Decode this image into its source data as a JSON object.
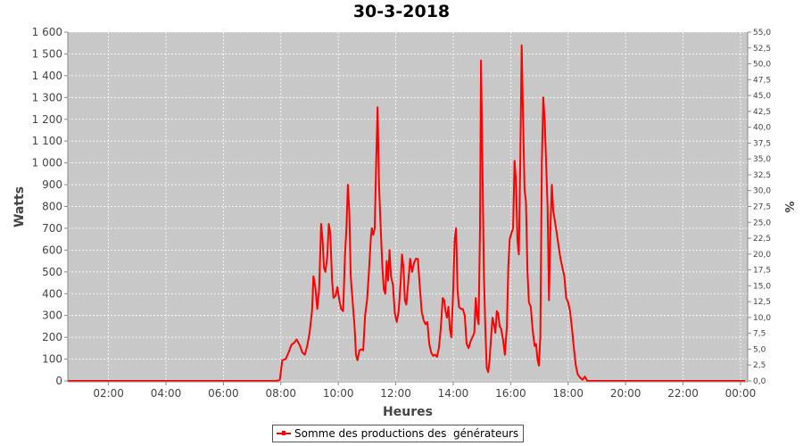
{
  "chart_data": {
    "type": "line",
    "title": "30-3-2018",
    "xlabel": "Heures",
    "ylabel": "Watts",
    "y2label": "%",
    "ylim": [
      0,
      1600
    ],
    "y2lim": [
      0,
      55
    ],
    "xlim": [
      "00:35",
      "00:15+1"
    ],
    "x_ticks": [
      "02:00",
      "04:00",
      "06:00",
      "08:00",
      "10:00",
      "12:00",
      "14:00",
      "16:00",
      "18:00",
      "20:00",
      "22:00",
      "00:00"
    ],
    "y_ticks": [
      "0",
      "100",
      "200",
      "300",
      "400",
      "500",
      "600",
      "700",
      "800",
      "900",
      "1 000",
      "1 100",
      "1 200",
      "1 300",
      "1 400",
      "1 500",
      "1 600"
    ],
    "y2_ticks": [
      "0,0",
      "2,5",
      "5,0",
      "7,5",
      "10,0",
      "12,5",
      "15,0",
      "17,5",
      "20,0",
      "22,5",
      "25,0",
      "27,5",
      "30,0",
      "32,5",
      "35,0",
      "37,5",
      "40,0",
      "42,5",
      "45,0",
      "47,5",
      "50,0",
      "52,5",
      "55,0"
    ],
    "grid": true,
    "legend_position": "bottom-center",
    "colors": {
      "series": "#ff0000",
      "plot_bg": "#c8c8c8",
      "grid": "#ffffff"
    },
    "series": [
      {
        "name": "Somme des productions des  générateurs",
        "points": [
          [
            "00:35",
            0
          ],
          [
            "07:50",
            0
          ],
          [
            "07:58",
            5
          ],
          [
            "08:03",
            95
          ],
          [
            "08:10",
            100
          ],
          [
            "08:17",
            135
          ],
          [
            "08:22",
            165
          ],
          [
            "08:28",
            175
          ],
          [
            "08:33",
            190
          ],
          [
            "08:40",
            160
          ],
          [
            "08:45",
            130
          ],
          [
            "08:50",
            120
          ],
          [
            "08:55",
            160
          ],
          [
            "09:00",
            220
          ],
          [
            "09:05",
            320
          ],
          [
            "09:08",
            480
          ],
          [
            "09:12",
            430
          ],
          [
            "09:16",
            330
          ],
          [
            "09:20",
            420
          ],
          [
            "09:24",
            720
          ],
          [
            "09:27",
            650
          ],
          [
            "09:30",
            520
          ],
          [
            "09:33",
            500
          ],
          [
            "09:37",
            570
          ],
          [
            "09:40",
            720
          ],
          [
            "09:43",
            680
          ],
          [
            "09:47",
            460
          ],
          [
            "09:50",
            380
          ],
          [
            "09:54",
            390
          ],
          [
            "09:58",
            430
          ],
          [
            "10:02",
            370
          ],
          [
            "10:06",
            330
          ],
          [
            "10:10",
            320
          ],
          [
            "10:14",
            580
          ],
          [
            "10:17",
            700
          ],
          [
            "10:20",
            900
          ],
          [
            "10:23",
            780
          ],
          [
            "10:26",
            480
          ],
          [
            "10:30",
            360
          ],
          [
            "10:34",
            250
          ],
          [
            "10:37",
            120
          ],
          [
            "10:40",
            95
          ],
          [
            "10:44",
            140
          ],
          [
            "10:48",
            145
          ],
          [
            "10:52",
            140
          ],
          [
            "10:56",
            300
          ],
          [
            "11:00",
            370
          ],
          [
            "11:04",
            500
          ],
          [
            "11:08",
            660
          ],
          [
            "11:10",
            700
          ],
          [
            "11:13",
            670
          ],
          [
            "11:16",
            700
          ],
          [
            "11:19",
            1000
          ],
          [
            "11:22",
            1255
          ],
          [
            "11:25",
            900
          ],
          [
            "11:29",
            680
          ],
          [
            "11:32",
            520
          ],
          [
            "11:35",
            420
          ],
          [
            "11:38",
            400
          ],
          [
            "11:41",
            550
          ],
          [
            "11:44",
            460
          ],
          [
            "11:47",
            600
          ],
          [
            "11:50",
            480
          ],
          [
            "11:54",
            440
          ],
          [
            "11:58",
            310
          ],
          [
            "12:02",
            270
          ],
          [
            "12:06",
            320
          ],
          [
            "12:10",
            450
          ],
          [
            "12:13",
            580
          ],
          [
            "12:16",
            520
          ],
          [
            "12:19",
            370
          ],
          [
            "12:22",
            350
          ],
          [
            "12:26",
            450
          ],
          [
            "12:30",
            560
          ],
          [
            "12:34",
            500
          ],
          [
            "12:38",
            540
          ],
          [
            "12:42",
            560
          ],
          [
            "12:46",
            560
          ],
          [
            "12:50",
            440
          ],
          [
            "12:54",
            320
          ],
          [
            "12:58",
            280
          ],
          [
            "13:02",
            260
          ],
          [
            "13:06",
            270
          ],
          [
            "13:10",
            170
          ],
          [
            "13:14",
            130
          ],
          [
            "13:18",
            115
          ],
          [
            "13:22",
            120
          ],
          [
            "13:26",
            110
          ],
          [
            "13:30",
            150
          ],
          [
            "13:34",
            240
          ],
          [
            "13:38",
            380
          ],
          [
            "13:41",
            370
          ],
          [
            "13:44",
            320
          ],
          [
            "13:47",
            290
          ],
          [
            "13:50",
            340
          ],
          [
            "13:53",
            240
          ],
          [
            "13:56",
            200
          ],
          [
            "14:00",
            420
          ],
          [
            "14:03",
            650
          ],
          [
            "14:06",
            700
          ],
          [
            "14:09",
            420
          ],
          [
            "14:12",
            340
          ],
          [
            "14:16",
            330
          ],
          [
            "14:20",
            330
          ],
          [
            "14:24",
            300
          ],
          [
            "14:28",
            170
          ],
          [
            "14:32",
            150
          ],
          [
            "14:36",
            180
          ],
          [
            "14:40",
            200
          ],
          [
            "14:44",
            220
          ],
          [
            "14:47",
            380
          ],
          [
            "14:50",
            300
          ],
          [
            "14:53",
            260
          ],
          [
            "14:56",
            700
          ],
          [
            "14:58",
            1470
          ],
          [
            "15:01",
            1000
          ],
          [
            "15:04",
            500
          ],
          [
            "15:07",
            250
          ],
          [
            "15:10",
            60
          ],
          [
            "15:13",
            40
          ],
          [
            "15:16",
            100
          ],
          [
            "15:19",
            200
          ],
          [
            "15:22",
            290
          ],
          [
            "15:25",
            260
          ],
          [
            "15:28",
            220
          ],
          [
            "15:31",
            320
          ],
          [
            "15:34",
            310
          ],
          [
            "15:37",
            250
          ],
          [
            "15:40",
            240
          ],
          [
            "15:44",
            190
          ],
          [
            "15:48",
            120
          ],
          [
            "15:52",
            250
          ],
          [
            "15:55",
            520
          ],
          [
            "15:58",
            650
          ],
          [
            "16:02",
            680
          ],
          [
            "16:05",
            700
          ],
          [
            "16:08",
            1010
          ],
          [
            "16:11",
            920
          ],
          [
            "16:14",
            650
          ],
          [
            "16:17",
            580
          ],
          [
            "16:20",
            1000
          ],
          [
            "16:23",
            1540
          ],
          [
            "16:26",
            1200
          ],
          [
            "16:29",
            880
          ],
          [
            "16:32",
            820
          ],
          [
            "16:35",
            500
          ],
          [
            "16:38",
            360
          ],
          [
            "16:42",
            340
          ],
          [
            "16:46",
            230
          ],
          [
            "16:50",
            160
          ],
          [
            "16:53",
            170
          ],
          [
            "16:56",
            100
          ],
          [
            "16:59",
            70
          ],
          [
            "17:02",
            200
          ],
          [
            "17:05",
            1000
          ],
          [
            "17:08",
            1300
          ],
          [
            "17:11",
            1200
          ],
          [
            "17:14",
            1000
          ],
          [
            "17:17",
            800
          ],
          [
            "17:20",
            370
          ],
          [
            "17:23",
            700
          ],
          [
            "17:26",
            900
          ],
          [
            "17:29",
            780
          ],
          [
            "17:32",
            740
          ],
          [
            "17:36",
            680
          ],
          [
            "17:40",
            620
          ],
          [
            "17:44",
            560
          ],
          [
            "17:48",
            520
          ],
          [
            "17:52",
            480
          ],
          [
            "17:56",
            380
          ],
          [
            "18:00",
            360
          ],
          [
            "18:04",
            320
          ],
          [
            "18:08",
            240
          ],
          [
            "18:12",
            150
          ],
          [
            "18:16",
            70
          ],
          [
            "18:20",
            30
          ],
          [
            "18:25",
            15
          ],
          [
            "18:30",
            5
          ],
          [
            "18:35",
            20
          ],
          [
            "18:40",
            0
          ],
          [
            "00:10+1",
            0
          ]
        ]
      }
    ]
  }
}
